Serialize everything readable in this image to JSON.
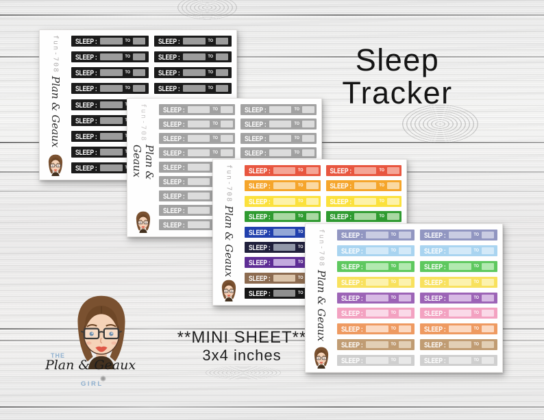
{
  "title": {
    "line1": "Sleep",
    "line2": "Tracker"
  },
  "note": {
    "line1": "**MINI SHEET**",
    "line2": "3x4 inches"
  },
  "logo": {
    "top": "THE",
    "name": "Plan & Geaux",
    "bottom": "GIRL",
    "accent": "#8fb0cf"
  },
  "sticker": {
    "label": "SLEEP :",
    "to": "TO"
  },
  "sheets": [
    {
      "id": "fun-708",
      "brand": "Plan & Geaux",
      "columns": 2,
      "rows": [
        {
          "name": "black",
          "base": "#1b1b1b",
          "box": "#9c9c9c"
        },
        {
          "name": "black",
          "base": "#1b1b1b",
          "box": "#9c9c9c"
        },
        {
          "name": "black",
          "base": "#1b1b1b",
          "box": "#9c9c9c"
        },
        {
          "name": "black",
          "base": "#1b1b1b",
          "box": "#9c9c9c"
        },
        {
          "name": "black",
          "base": "#1b1b1b",
          "box": "#9c9c9c"
        },
        {
          "name": "black",
          "base": "#1b1b1b",
          "box": "#9c9c9c"
        },
        {
          "name": "black",
          "base": "#1b1b1b",
          "box": "#9c9c9c"
        },
        {
          "name": "black",
          "base": "#1b1b1b",
          "box": "#9c9c9c"
        },
        {
          "name": "black",
          "base": "#1b1b1b",
          "box": "#9c9c9c"
        }
      ]
    },
    {
      "id": "fun-708",
      "brand": "Plan & Geaux",
      "columns": 2,
      "rows": [
        {
          "name": "gray",
          "base": "#a2a2a2",
          "box": "#dcdcdc"
        },
        {
          "name": "gray",
          "base": "#a2a2a2",
          "box": "#dcdcdc"
        },
        {
          "name": "gray",
          "base": "#a2a2a2",
          "box": "#dcdcdc"
        },
        {
          "name": "gray",
          "base": "#a2a2a2",
          "box": "#dcdcdc"
        },
        {
          "name": "gray",
          "base": "#a2a2a2",
          "box": "#dcdcdc"
        },
        {
          "name": "gray",
          "base": "#a2a2a2",
          "box": "#dcdcdc"
        },
        {
          "name": "gray",
          "base": "#a2a2a2",
          "box": "#dcdcdc"
        },
        {
          "name": "gray",
          "base": "#a2a2a2",
          "box": "#dcdcdc"
        },
        {
          "name": "gray",
          "base": "#a2a2a2",
          "box": "#dcdcdc"
        }
      ]
    },
    {
      "id": "fun-708",
      "brand": "Plan & Geaux",
      "columns": 2,
      "rows": [
        {
          "name": "red",
          "base": "#e8563f",
          "box": "#f4a596"
        },
        {
          "name": "orange",
          "base": "#f5a52b",
          "box": "#fad9a2"
        },
        {
          "name": "yellow",
          "base": "#fbe13d",
          "box": "#fdf2a9"
        },
        {
          "name": "green",
          "base": "#2f9b31",
          "box": "#a9d8a2"
        },
        {
          "name": "blue",
          "base": "#2140ad",
          "box": "#93a7d6"
        },
        {
          "name": "navy",
          "base": "#20203c",
          "box": "#9298a9"
        },
        {
          "name": "purple",
          "base": "#5e2d95",
          "box": "#c3aade"
        },
        {
          "name": "brown",
          "base": "#8c6b50",
          "box": "#dcc5ab"
        },
        {
          "name": "black",
          "base": "#161616",
          "box": "#8f8f8f"
        }
      ]
    },
    {
      "id": "fun-708",
      "brand": "Plan & Geaux",
      "columns": 2,
      "rows": [
        {
          "name": "periwinkle",
          "base": "#9196c1",
          "box": "#c9cce2"
        },
        {
          "name": "light-blue",
          "base": "#a9d4f0",
          "box": "#d3e9f8"
        },
        {
          "name": "green",
          "base": "#5ec85f",
          "box": "#b2e9b0"
        },
        {
          "name": "yellow",
          "base": "#f8e15e",
          "box": "#fcf2ae"
        },
        {
          "name": "purple",
          "base": "#9c64b6",
          "box": "#d7bae4"
        },
        {
          "name": "pink",
          "base": "#f3a2c1",
          "box": "#fad9e8"
        },
        {
          "name": "peach",
          "base": "#ee9a61",
          "box": "#fbd9c2"
        },
        {
          "name": "tan",
          "base": "#c09c73",
          "box": "#e2cfb5"
        },
        {
          "name": "light-gray",
          "base": "#cfcfcf",
          "box": "#e8e8e8"
        }
      ]
    }
  ]
}
